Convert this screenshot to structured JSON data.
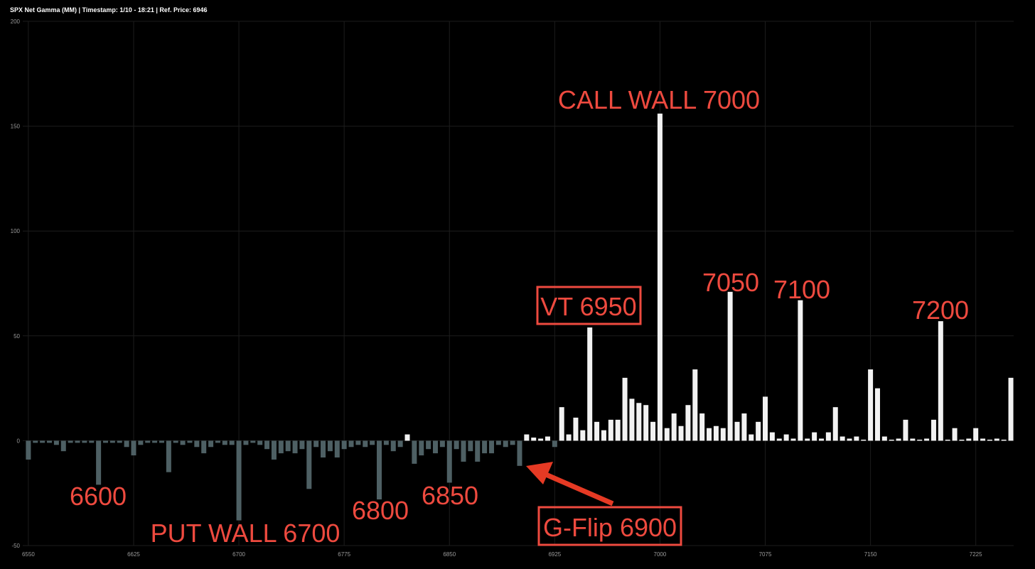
{
  "chart_data": {
    "type": "bar",
    "title": "SPX Net Gamma (MM) | Timestamp: 1/10 - 18:21  | Ref. Price: 6946",
    "x": [
      6550,
      6555,
      6560,
      6565,
      6570,
      6575,
      6580,
      6585,
      6590,
      6595,
      6600,
      6605,
      6610,
      6615,
      6620,
      6625,
      6630,
      6635,
      6640,
      6645,
      6650,
      6655,
      6660,
      6665,
      6670,
      6675,
      6680,
      6685,
      6690,
      6695,
      6700,
      6705,
      6710,
      6715,
      6720,
      6725,
      6730,
      6735,
      6740,
      6745,
      6750,
      6755,
      6760,
      6765,
      6770,
      6775,
      6780,
      6785,
      6790,
      6795,
      6800,
      6805,
      6810,
      6815,
      6820,
      6825,
      6830,
      6835,
      6840,
      6845,
      6850,
      6855,
      6860,
      6865,
      6870,
      6875,
      6880,
      6885,
      6890,
      6895,
      6900,
      6905,
      6910,
      6915,
      6920,
      6925,
      6930,
      6935,
      6940,
      6945,
      6950,
      6955,
      6960,
      6965,
      6970,
      6975,
      6980,
      6985,
      6990,
      6995,
      7000,
      7005,
      7010,
      7015,
      7020,
      7025,
      7030,
      7035,
      7040,
      7045,
      7050,
      7055,
      7060,
      7065,
      7070,
      7075,
      7080,
      7085,
      7090,
      7095,
      7100,
      7105,
      7110,
      7115,
      7120,
      7125,
      7130,
      7135,
      7140,
      7145,
      7150,
      7155,
      7160,
      7165,
      7170,
      7175,
      7180,
      7185,
      7190,
      7195,
      7200,
      7205,
      7210,
      7215,
      7220,
      7225,
      7230,
      7235,
      7240,
      7245,
      7250
    ],
    "values": [
      -9,
      -1,
      -1,
      -1,
      -2,
      -5,
      -1,
      -1,
      -1,
      -1,
      -21,
      -1,
      -1,
      -1,
      -3,
      -7,
      -2,
      -1,
      -1,
      -1,
      -15,
      -1,
      -2,
      -1,
      -3,
      -6,
      -3,
      -1,
      -2,
      -2,
      -38,
      -2,
      -1,
      -2,
      -4,
      -9,
      -6,
      -5,
      -6,
      -4,
      -23,
      -3,
      -8,
      -5,
      -8,
      -4,
      -3,
      -2,
      -3,
      -2,
      -28,
      -2,
      -5,
      -3,
      3,
      -11,
      -7,
      -4,
      -6,
      -3,
      -20,
      -4,
      -10,
      -5,
      -10,
      -6,
      -6,
      -2,
      -3,
      -2,
      -12,
      3,
      1.5,
      1,
      2,
      -3,
      16,
      3,
      11,
      5,
      54,
      9,
      5,
      10,
      10,
      30,
      20,
      18,
      17,
      9,
      156,
      6,
      13,
      7,
      17,
      34,
      13,
      6,
      7,
      6,
      71,
      9,
      13,
      3,
      9,
      21,
      4,
      1,
      3,
      1,
      67,
      1,
      4,
      1,
      4,
      16,
      2,
      1,
      2,
      0.5,
      34,
      25,
      2,
      0.5,
      1,
      10,
      1,
      0.5,
      1,
      10,
      57,
      0.5,
      6,
      0.5,
      1,
      6,
      1,
      0.5,
      1,
      0.5,
      30
    ],
    "positive_color": "#f2f2f2",
    "negative_color": "#4e6064",
    "xlim": [
      6546,
      7252
    ],
    "xticks": [
      6550,
      6625,
      6700,
      6775,
      6850,
      6925,
      7000,
      7075,
      7150,
      7225
    ],
    "ylim": [
      -50,
      200
    ],
    "yticks": [
      -50,
      0,
      50,
      100,
      150,
      200
    ],
    "grid": true,
    "annotations": [
      "CALL WALL 7000",
      "7050",
      "7100",
      "7200",
      "VT 6950",
      "6600",
      "PUT WALL 6700",
      "6800",
      "6850",
      "G-Flip 6900"
    ]
  }
}
